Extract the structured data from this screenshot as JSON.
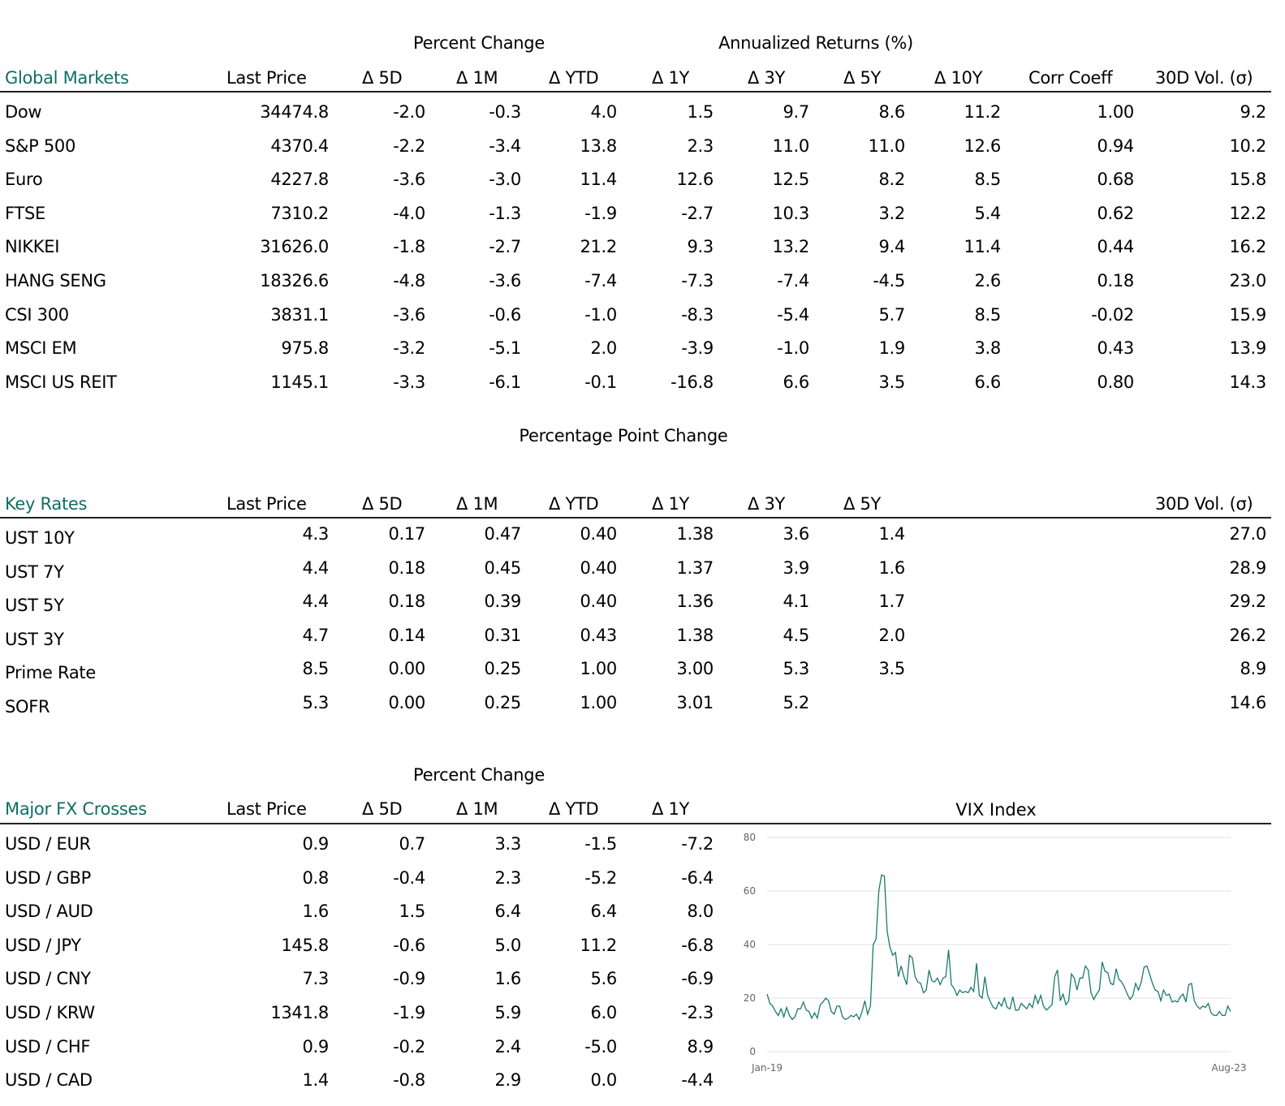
{
  "global_markets": {
    "group_headers": [
      "Percent Change",
      "Annualized Returns (%)"
    ],
    "title": "Global Markets",
    "columns": [
      "Last Price",
      "Δ 5D",
      "Δ 1M",
      "Δ YTD",
      "Δ 1Y",
      "Δ 3Y",
      "Δ 5Y",
      "Δ 10Y",
      "Corr Coeff",
      "30D Vol. (σ)"
    ],
    "rows": [
      [
        "Dow",
        "34474.8",
        "-2.0",
        "-0.3",
        "4.0",
        "1.5",
        "9.7",
        "8.6",
        "11.2",
        "1.00",
        "9.2"
      ],
      [
        "S&P 500",
        "4370.4",
        "-2.2",
        "-3.4",
        "13.8",
        "2.3",
        "11.0",
        "11.0",
        "12.6",
        "0.94",
        "10.2"
      ],
      [
        "Euro",
        "4227.8",
        "-3.6",
        "-3.0",
        "11.4",
        "12.6",
        "12.5",
        "8.2",
        "8.5",
        "0.68",
        "15.8"
      ],
      [
        "FTSE",
        "7310.2",
        "-4.0",
        "-1.3",
        "-1.9",
        "-2.7",
        "10.3",
        "3.2",
        "5.4",
        "0.62",
        "12.2"
      ],
      [
        "NIKKEI",
        "31626.0",
        "-1.8",
        "-2.7",
        "21.2",
        "9.3",
        "13.2",
        "9.4",
        "11.4",
        "0.44",
        "16.2"
      ],
      [
        "HANG SENG",
        "18326.6",
        "-4.8",
        "-3.6",
        "-7.4",
        "-7.3",
        "-7.4",
        "-4.5",
        "2.6",
        "0.18",
        "23.0"
      ],
      [
        "CSI 300",
        "3831.1",
        "-3.6",
        "-0.6",
        "-1.0",
        "-8.3",
        "-5.4",
        "5.7",
        "8.5",
        "-0.02",
        "15.9"
      ],
      [
        "MSCI EM",
        "975.8",
        "-3.2",
        "-5.1",
        "2.0",
        "-3.9",
        "-1.0",
        "1.9",
        "3.8",
        "0.43",
        "13.9"
      ],
      [
        "MSCI US REIT",
        "1145.1",
        "-3.3",
        "-6.1",
        "-0.1",
        "-16.8",
        "6.6",
        "3.5",
        "6.6",
        "0.80",
        "14.3"
      ]
    ]
  },
  "key_rates": {
    "group_header": "Percentage Point Change",
    "title": "Key Rates",
    "columns": [
      "Last Price",
      "Δ 5D",
      "Δ 1M",
      "Δ YTD",
      "Δ 1Y",
      "Δ 3Y",
      "Δ 5Y",
      "",
      "",
      "30D Vol. (σ)"
    ],
    "rows": [
      [
        "UST 10Y",
        "4.3",
        "0.17",
        "0.47",
        "0.40",
        "1.38",
        "3.6",
        "1.4",
        "",
        "",
        "27.0"
      ],
      [
        "UST 7Y",
        "4.4",
        "0.18",
        "0.45",
        "0.40",
        "1.37",
        "3.9",
        "1.6",
        "",
        "",
        "28.9"
      ],
      [
        "UST 5Y",
        "4.4",
        "0.18",
        "0.39",
        "0.40",
        "1.36",
        "4.1",
        "1.7",
        "",
        "",
        "29.2"
      ],
      [
        "UST 3Y",
        "4.7",
        "0.14",
        "0.31",
        "0.43",
        "1.38",
        "4.5",
        "2.0",
        "",
        "",
        "26.2"
      ],
      [
        "Prime Rate",
        "8.5",
        "0.00",
        "0.25",
        "1.00",
        "3.00",
        "5.3",
        "3.5",
        "",
        "",
        "8.9"
      ],
      [
        "SOFR",
        "5.3",
        "0.00",
        "0.25",
        "1.00",
        "3.01",
        "5.2",
        "",
        "",
        "",
        "14.6"
      ]
    ]
  },
  "fx": {
    "group_header": "Percent Change",
    "title": "Major FX Crosses",
    "columns": [
      "Last Price",
      "Δ 5D",
      "Δ 1M",
      "Δ YTD",
      "Δ 1Y"
    ],
    "rows": [
      [
        "USD / EUR",
        "0.9",
        "0.7",
        "3.3",
        "-1.5",
        "-7.2"
      ],
      [
        "USD / GBP",
        "0.8",
        "-0.4",
        "2.3",
        "-5.2",
        "-6.4"
      ],
      [
        "USD / AUD",
        "1.6",
        "1.5",
        "6.4",
        "6.4",
        "8.0"
      ],
      [
        "USD / JPY",
        "145.8",
        "-0.6",
        "5.0",
        "11.2",
        "-6.8"
      ],
      [
        "USD / CNY",
        "7.3",
        "-0.9",
        "1.6",
        "5.6",
        "-6.9"
      ],
      [
        "USD / KRW",
        "1341.8",
        "-1.9",
        "5.9",
        "6.0",
        "-2.3"
      ],
      [
        "USD / CHF",
        "0.9",
        "-0.2",
        "2.4",
        "-5.0",
        "8.9"
      ],
      [
        "USD / CAD",
        "1.4",
        "-0.8",
        "2.9",
        "0.0",
        "-4.4"
      ]
    ]
  },
  "colors": {
    "accent": "#0f6e64",
    "line": "#1a7a70",
    "grid": "#e0e0e0",
    "tick": "#666666"
  },
  "chart_data": {
    "type": "line",
    "title": "VIX Index",
    "x_tick_labels": [
      "Jan-19",
      "Aug-23"
    ],
    "x_range": [
      "Jan-19",
      "Aug-23"
    ],
    "y_ticks": [
      0,
      20,
      40,
      60,
      80
    ],
    "ylim": [
      0,
      80
    ],
    "grid": "horizontal",
    "values": [
      21.5,
      18,
      17,
      15,
      13.5,
      16,
      13,
      16.5,
      13.5,
      12,
      13,
      16,
      16,
      18.5,
      15.5,
      15,
      12.5,
      14.5,
      12.5,
      17.5,
      18.5,
      20,
      19,
      15,
      14,
      17,
      17,
      13,
      12,
      12.5,
      13.5,
      13,
      14,
      12,
      15,
      19,
      14,
      17,
      40,
      42,
      60,
      66,
      65.5,
      45,
      39,
      36,
      37,
      28,
      32,
      28,
      25,
      36,
      35,
      28,
      26,
      25.5,
      22,
      23,
      30.5,
      26.5,
      26,
      27.5,
      25,
      27.5,
      28,
      38,
      25,
      23.5,
      21,
      23,
      22,
      22.5,
      22,
      24,
      22.5,
      33,
      21,
      20,
      28,
      21,
      18.5,
      16.5,
      16,
      18.5,
      17,
      20,
      16.5,
      16,
      20.5,
      15.5,
      15.5,
      18,
      17,
      16,
      18,
      16.5,
      21,
      18,
      21,
      17,
      15.5,
      16.5,
      17.5,
      28,
      30.5,
      19,
      21.5,
      17.5,
      19,
      29,
      27.5,
      23,
      27.5,
      27.5,
      32,
      30.5,
      22,
      19.5,
      21.5,
      23,
      33.5,
      30,
      29.5,
      25.5,
      25,
      31,
      27,
      26,
      24,
      21.5,
      19.5,
      21,
      25.5,
      23,
      26,
      31.5,
      32,
      29,
      25.5,
      23,
      22.5,
      19,
      23,
      21,
      21.5,
      18.5,
      19,
      18.5,
      20.5,
      21.5,
      18.5,
      25,
      25.5,
      19,
      17,
      16,
      17,
      16.5,
      18,
      14.5,
      13.5,
      13.5,
      15,
      13.5,
      13.5,
      17,
      15
    ]
  }
}
